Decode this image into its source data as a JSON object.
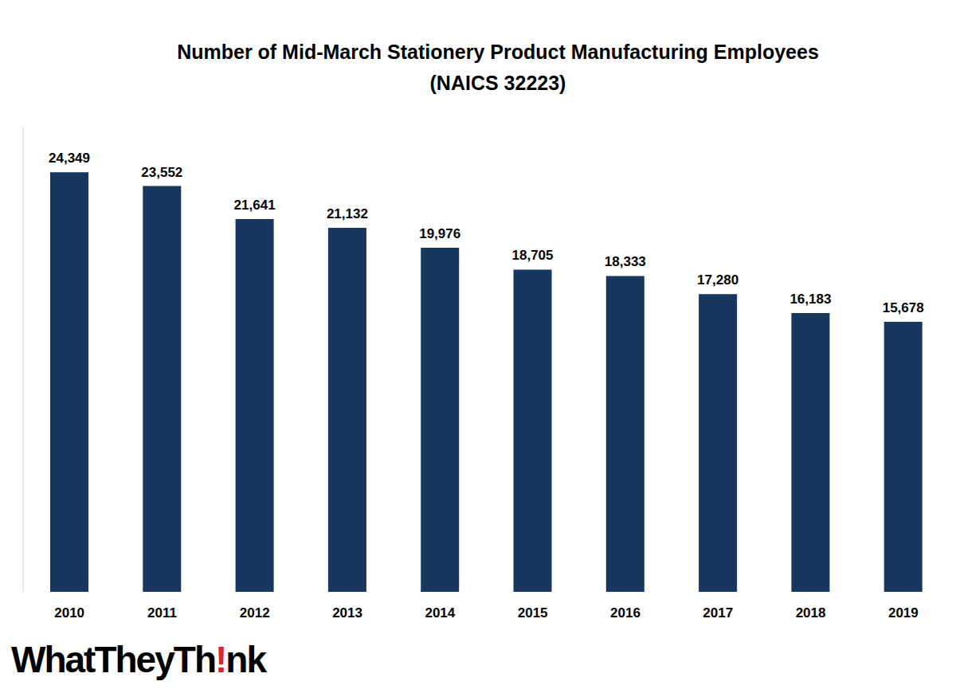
{
  "chart_data": {
    "type": "bar",
    "title": "Number of Mid-March Stationery Product Manufacturing Employees",
    "subtitle": "(NAICS 32223)",
    "categories": [
      "2010",
      "2011",
      "2012",
      "2013",
      "2014",
      "2015",
      "2016",
      "2017",
      "2018",
      "2019"
    ],
    "values": [
      24349,
      23552,
      21641,
      21132,
      19976,
      18705,
      18333,
      17280,
      16183,
      15678
    ],
    "value_labels": [
      "24,349",
      "23,552",
      "21,641",
      "21,132",
      "19,976",
      "18,705",
      "18,333",
      "17,280",
      "16,183",
      "15,678"
    ],
    "color": "#17375e",
    "ylim": [
      0,
      27000
    ],
    "data_labels": true,
    "tick_labels": "x",
    "grid": false,
    "annotations": [
      "WhatTheyTh!nk"
    ]
  }
}
